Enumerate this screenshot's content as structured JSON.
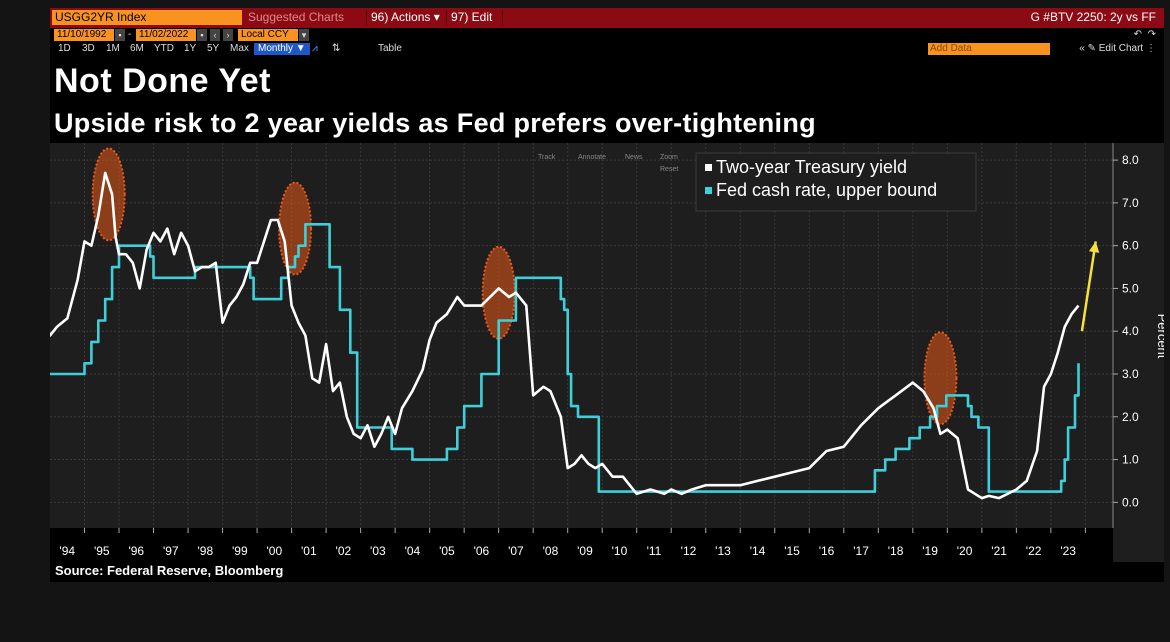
{
  "toolbar": {
    "ticker": "USGG2YR Index",
    "suggested": "Suggested Charts",
    "actions": "96) Actions ▾",
    "edit": "97) Edit ▾",
    "right_label": "G #BTV 2250: 2y vs FF",
    "start_date": "11/10/1992",
    "end_date": "11/02/2022",
    "currency": "Local CCY",
    "ranges": [
      "1D",
      "3D",
      "1M",
      "6M",
      "YTD",
      "1Y",
      "5Y",
      "Max"
    ],
    "frequency": "Monthly ▼",
    "table_label": "Table",
    "add_data_placeholder": "Add Data",
    "edit_chart": "Edit Chart",
    "colors": {
      "bar": "#8b0a14",
      "field": "#f7931e",
      "selected": "#1e58c8"
    }
  },
  "chart_controls": [
    "Track",
    "Annotate",
    "News",
    "Zoom",
    "Reset"
  ],
  "source": "Source: Federal Reserve, Bloomberg",
  "chart_data": {
    "type": "line",
    "title": "Not Done Yet",
    "subtitle": "Upside risk to 2 year yields as Fed prefers over-tightening",
    "ylabel": "Percent",
    "ylim": [
      -0.6,
      8.4
    ],
    "yticks": [
      "8.0",
      "7.0",
      "6.0",
      "5.0",
      "4.0",
      "3.0",
      "2.0",
      "1.0",
      "0.0"
    ],
    "xlim": [
      1993.0,
      2023.8
    ],
    "x_tick_labels": [
      "'94",
      "'95",
      "'96",
      "'97",
      "'98",
      "'99",
      "'00",
      "'01",
      "'02",
      "'03",
      "'04",
      "'05",
      "'06",
      "'07",
      "'08",
      "'09",
      "'10",
      "'11",
      "'12",
      "'13",
      "'14",
      "'15",
      "'16",
      "'17",
      "'18",
      "'19",
      "'20",
      "'21",
      "'22",
      "'23"
    ],
    "legend_position": "top-right",
    "grid": true,
    "series": [
      {
        "name": "Two-year Treasury yield",
        "color": "#ffffff",
        "x": [
          1992.9,
          1993.0,
          1993.2,
          1993.5,
          1993.8,
          1994.0,
          1994.2,
          1994.4,
          1994.6,
          1994.8,
          1994.9,
          1995.0,
          1995.2,
          1995.4,
          1995.6,
          1995.8,
          1996.0,
          1996.2,
          1996.4,
          1996.6,
          1996.8,
          1997.0,
          1997.2,
          1997.4,
          1997.6,
          1997.8,
          1998.0,
          1998.2,
          1998.4,
          1998.6,
          1998.8,
          1999.0,
          1999.2,
          1999.4,
          1999.6,
          1999.8,
          2000.0,
          2000.2,
          2000.4,
          2000.6,
          2000.8,
          2001.0,
          2001.2,
          2001.4,
          2001.6,
          2001.8,
          2002.0,
          2002.2,
          2002.4,
          2002.6,
          2002.8,
          2003.0,
          2003.2,
          2003.5,
          2003.8,
          2004.0,
          2004.2,
          2004.5,
          2004.8,
          2005.0,
          2005.5,
          2006.0,
          2006.3,
          2006.5,
          2006.8,
          2007.0,
          2007.3,
          2007.5,
          2007.8,
          2008.0,
          2008.2,
          2008.4,
          2008.6,
          2008.8,
          2009.0,
          2009.3,
          2009.6,
          2010.0,
          2010.4,
          2010.8,
          2011.0,
          2011.3,
          2011.6,
          2012.0,
          2012.5,
          2013.0,
          2013.5,
          2014.0,
          2014.5,
          2015.0,
          2015.5,
          2016.0,
          2016.5,
          2017.0,
          2017.5,
          2018.0,
          2018.3,
          2018.6,
          2018.8,
          2019.0,
          2019.3,
          2019.6,
          2019.8,
          2020.0,
          2020.2,
          2020.5,
          2021.0,
          2021.3,
          2021.6,
          2021.8,
          2022.0,
          2022.2,
          2022.4,
          2022.6,
          2022.8
        ],
        "values": [
          4.1,
          3.9,
          4.1,
          4.3,
          5.2,
          6.1,
          6.0,
          6.7,
          7.7,
          7.2,
          6.2,
          5.8,
          5.8,
          5.6,
          5.0,
          5.9,
          6.3,
          6.1,
          6.4,
          5.8,
          6.3,
          6.0,
          5.4,
          5.5,
          5.5,
          5.6,
          4.2,
          4.6,
          4.8,
          5.1,
          5.6,
          5.6,
          6.1,
          6.6,
          6.6,
          6.1,
          4.6,
          4.2,
          3.9,
          2.9,
          2.8,
          3.7,
          2.6,
          2.8,
          2.0,
          1.6,
          1.5,
          1.8,
          1.3,
          1.6,
          2.0,
          1.6,
          2.2,
          2.6,
          3.1,
          3.8,
          4.2,
          4.4,
          4.8,
          4.6,
          4.6,
          5.0,
          4.8,
          4.9,
          4.6,
          2.5,
          2.7,
          2.6,
          2.0,
          0.8,
          0.9,
          1.1,
          0.9,
          0.8,
          0.9,
          0.6,
          0.6,
          0.2,
          0.3,
          0.2,
          0.3,
          0.2,
          0.3,
          0.4,
          0.4,
          0.4,
          0.5,
          0.6,
          0.7,
          0.8,
          1.2,
          1.3,
          1.8,
          2.2,
          2.5,
          2.8,
          2.6,
          2.2,
          1.6,
          1.7,
          1.5,
          0.3,
          0.2,
          0.1,
          0.15,
          0.1,
          0.3,
          0.5,
          1.2,
          2.7,
          3.0,
          3.5,
          4.1,
          4.4,
          4.6
        ]
      },
      {
        "name": "Fed cash rate, upper bound",
        "color": "#3ecfd8",
        "x": [
          1992.9,
          1993.9,
          1994.0,
          1994.2,
          1994.4,
          1994.6,
          1994.8,
          1995.0,
          1995.5,
          1995.9,
          1996.0,
          1997.2,
          1998.7,
          1998.8,
          1998.9,
          1999.5,
          1999.7,
          1999.9,
          2000.1,
          2000.2,
          2000.4,
          2001.0,
          2001.1,
          2001.4,
          2001.7,
          2001.9,
          2002.9,
          2003.5,
          2004.5,
          2004.8,
          2005.0,
          2005.5,
          2006.0,
          2006.5,
          2007.6,
          2007.8,
          2007.9,
          2008.0,
          2008.1,
          2008.3,
          2008.5,
          2008.9,
          2015.9,
          2016.9,
          2017.2,
          2017.5,
          2017.9,
          2018.2,
          2018.5,
          2018.7,
          2018.97,
          2019.5,
          2019.6,
          2019.7,
          2019.9,
          2020.1,
          2020.2,
          2022.2,
          2022.3,
          2022.4,
          2022.5,
          2022.7,
          2022.8
        ],
        "values": [
          3.0,
          3.0,
          3.25,
          3.75,
          4.25,
          4.75,
          5.5,
          6.0,
          6.0,
          5.75,
          5.25,
          5.5,
          5.5,
          5.25,
          4.75,
          4.75,
          5.25,
          5.5,
          5.75,
          6.0,
          6.5,
          6.5,
          5.5,
          4.5,
          3.5,
          1.75,
          1.25,
          1.0,
          1.25,
          1.75,
          2.25,
          3.0,
          4.25,
          5.25,
          5.25,
          4.75,
          4.5,
          3.0,
          2.25,
          2.0,
          2.0,
          0.25,
          0.25,
          0.75,
          1.0,
          1.25,
          1.5,
          1.75,
          2.0,
          2.25,
          2.5,
          2.5,
          2.25,
          2.0,
          1.75,
          1.75,
          0.25,
          0.25,
          0.5,
          1.0,
          1.75,
          2.5,
          3.25
        ]
      }
    ],
    "annotations": [
      {
        "type": "highlight-ellipse",
        "x": 1994.7,
        "y": 7.2,
        "color": "#e8591a"
      },
      {
        "type": "highlight-ellipse",
        "x": 2000.1,
        "y": 6.4,
        "color": "#e8591a"
      },
      {
        "type": "highlight-ellipse",
        "x": 2006.0,
        "y": 4.9,
        "color": "#e8591a"
      },
      {
        "type": "highlight-ellipse",
        "x": 2018.8,
        "y": 2.9,
        "color": "#e8591a"
      },
      {
        "type": "arrow",
        "x_from": 2022.9,
        "y_from": 4.0,
        "x_to": 2023.3,
        "y_to": 6.1,
        "color": "#f5e13c"
      }
    ]
  }
}
